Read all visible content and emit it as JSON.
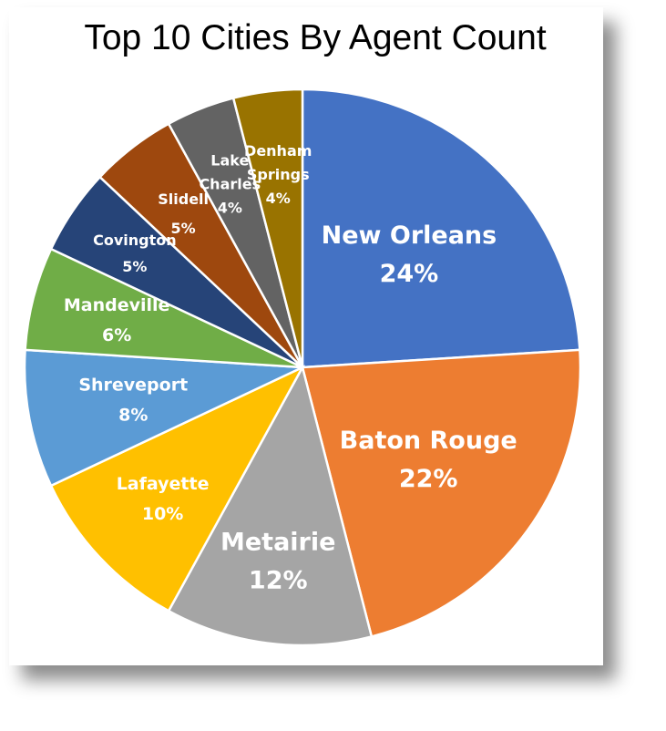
{
  "chart_data": {
    "type": "pie",
    "title": "Top 10 Cities By Agent Count",
    "slices": [
      {
        "label": "New Orleans",
        "percent_label": "24%",
        "value": 24,
        "color": "#4472C4"
      },
      {
        "label": "Baton Rouge",
        "percent_label": "22%",
        "value": 22,
        "color": "#ED7D31"
      },
      {
        "label": "Metairie",
        "percent_label": "12%",
        "value": 12,
        "color": "#A5A5A5"
      },
      {
        "label": "Lafayette",
        "percent_label": "10%",
        "value": 10,
        "color": "#FFC000"
      },
      {
        "label": "Shreveport",
        "percent_label": "8%",
        "value": 8,
        "color": "#5B9BD5"
      },
      {
        "label": "Mandeville",
        "percent_label": "6%",
        "value": 6,
        "color": "#70AD47"
      },
      {
        "label": "Covington",
        "percent_label": "5%",
        "value": 5,
        "color": "#264478"
      },
      {
        "label": "Slidell",
        "percent_label": "5%",
        "value": 5,
        "color": "#9E480E"
      },
      {
        "label": "Lake Charles",
        "percent_label": "4%",
        "value": 4,
        "color": "#636363"
      },
      {
        "label": "Denham Springs",
        "percent_label": "4%",
        "value": 4,
        "color": "#997300"
      }
    ]
  }
}
